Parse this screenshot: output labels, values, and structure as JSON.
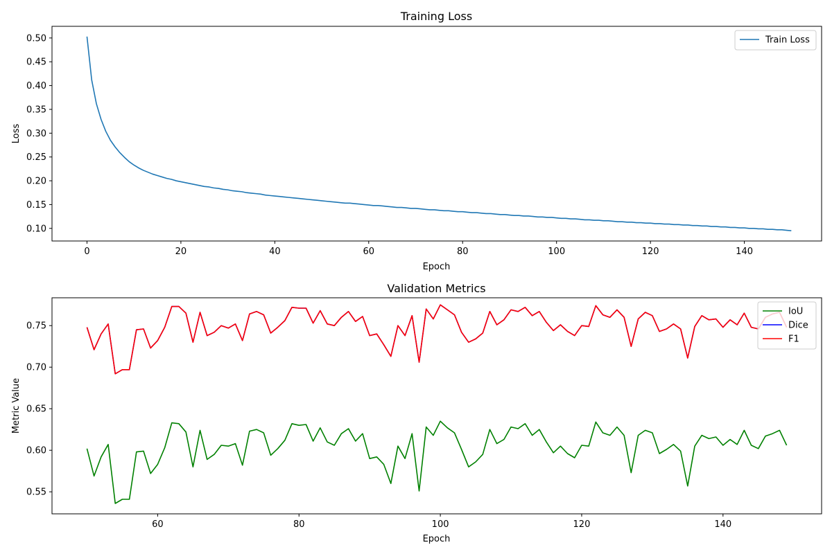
{
  "chart_data": [
    {
      "type": "line",
      "title": "Training Loss",
      "xlabel": "Epoch",
      "ylabel": "Loss",
      "xlim": [
        -7.45,
        156.45
      ],
      "ylim": [
        0.0735,
        0.5245
      ],
      "xticks": [
        0,
        20,
        40,
        60,
        80,
        100,
        120,
        140
      ],
      "yticks": [
        0.1,
        0.15,
        0.2,
        0.25,
        0.3,
        0.35,
        0.4,
        0.45,
        0.5
      ],
      "grid": false,
      "legend": "top-right",
      "colors": {
        "Train Loss": "#1f77b4"
      },
      "x_start": 0,
      "series": [
        {
          "name": "Train Loss",
          "values": [
            0.503,
            0.412,
            0.362,
            0.329,
            0.304,
            0.285,
            0.271,
            0.259,
            0.249,
            0.24,
            0.233,
            0.227,
            0.222,
            0.218,
            0.214,
            0.211,
            0.208,
            0.205,
            0.203,
            0.2,
            0.198,
            0.196,
            0.194,
            0.192,
            0.19,
            0.188,
            0.187,
            0.185,
            0.184,
            0.182,
            0.181,
            0.179,
            0.178,
            0.177,
            0.175,
            0.174,
            0.173,
            0.172,
            0.17,
            0.169,
            0.168,
            0.167,
            0.166,
            0.165,
            0.164,
            0.163,
            0.162,
            0.161,
            0.16,
            0.159,
            0.158,
            0.157,
            0.156,
            0.155,
            0.154,
            0.153,
            0.153,
            0.152,
            0.151,
            0.15,
            0.149,
            0.148,
            0.148,
            0.147,
            0.146,
            0.145,
            0.144,
            0.144,
            0.143,
            0.142,
            0.142,
            0.141,
            0.14,
            0.139,
            0.139,
            0.138,
            0.137,
            0.137,
            0.136,
            0.135,
            0.135,
            0.134,
            0.133,
            0.133,
            0.132,
            0.131,
            0.131,
            0.13,
            0.129,
            0.129,
            0.128,
            0.127,
            0.127,
            0.126,
            0.126,
            0.125,
            0.124,
            0.124,
            0.123,
            0.123,
            0.122,
            0.121,
            0.121,
            0.12,
            0.12,
            0.119,
            0.118,
            0.118,
            0.117,
            0.117,
            0.116,
            0.116,
            0.115,
            0.114,
            0.114,
            0.113,
            0.113,
            0.112,
            0.112,
            0.111,
            0.111,
            0.11,
            0.11,
            0.109,
            0.109,
            0.108,
            0.108,
            0.107,
            0.107,
            0.106,
            0.106,
            0.105,
            0.105,
            0.104,
            0.104,
            0.103,
            0.103,
            0.102,
            0.102,
            0.101,
            0.101,
            0.1,
            0.1,
            0.099,
            0.099,
            0.098,
            0.098,
            0.097,
            0.097,
            0.096,
            0.095
          ]
        }
      ]
    },
    {
      "type": "line",
      "title": "Validation Metrics",
      "xlabel": "Epoch",
      "ylabel": "Metric Value",
      "xlim": [
        45.05,
        153.95
      ],
      "ylim": [
        0.5235,
        0.7835
      ],
      "xticks": [
        60,
        80,
        100,
        120,
        140
      ],
      "yticks": [
        0.55,
        0.6,
        0.65,
        0.7,
        0.75
      ],
      "grid": false,
      "legend": "top-right",
      "colors": {
        "IoU": "#008000",
        "Dice": "#0000ff",
        "F1": "#ff0000"
      },
      "x_start": 50,
      "series": [
        {
          "name": "IoU",
          "values": [
            0.602,
            0.569,
            0.592,
            0.607,
            0.536,
            0.541,
            0.541,
            0.598,
            0.599,
            0.572,
            0.583,
            0.603,
            0.633,
            0.632,
            0.622,
            0.58,
            0.624,
            0.589,
            0.595,
            0.606,
            0.605,
            0.608,
            0.582,
            0.623,
            0.625,
            0.621,
            0.594,
            0.602,
            0.612,
            0.632,
            0.63,
            0.631,
            0.611,
            0.627,
            0.61,
            0.606,
            0.62,
            0.626,
            0.611,
            0.62,
            0.59,
            0.592,
            0.583,
            0.56,
            0.605,
            0.59,
            0.62,
            0.551,
            0.628,
            0.618,
            0.635,
            0.627,
            0.621,
            0.601,
            0.58,
            0.586,
            0.595,
            0.625,
            0.608,
            0.613,
            0.628,
            0.626,
            0.632,
            0.618,
            0.625,
            0.61,
            0.597,
            0.605,
            0.596,
            0.591,
            0.606,
            0.605,
            0.634,
            0.621,
            0.618,
            0.628,
            0.618,
            0.573,
            0.618,
            0.624,
            0.621,
            0.596,
            0.601,
            0.607,
            0.599,
            0.557,
            0.605,
            0.618,
            0.614,
            0.616,
            0.606,
            0.613,
            0.607,
            0.624,
            0.606,
            0.602,
            0.617,
            0.62,
            0.624,
            0.606
          ]
        },
        {
          "name": "Dice",
          "values": [
            0.748,
            0.721,
            0.74,
            0.752,
            0.692,
            0.697,
            0.697,
            0.745,
            0.746,
            0.723,
            0.732,
            0.748,
            0.773,
            0.773,
            0.765,
            0.73,
            0.766,
            0.738,
            0.742,
            0.75,
            0.747,
            0.752,
            0.732,
            0.764,
            0.767,
            0.763,
            0.741,
            0.748,
            0.756,
            0.772,
            0.771,
            0.771,
            0.753,
            0.768,
            0.752,
            0.75,
            0.76,
            0.767,
            0.755,
            0.761,
            0.738,
            0.74,
            0.727,
            0.713,
            0.75,
            0.738,
            0.762,
            0.706,
            0.77,
            0.758,
            0.775,
            0.769,
            0.763,
            0.742,
            0.73,
            0.734,
            0.741,
            0.767,
            0.751,
            0.757,
            0.769,
            0.767,
            0.772,
            0.762,
            0.767,
            0.754,
            0.744,
            0.751,
            0.743,
            0.738,
            0.75,
            0.749,
            0.774,
            0.763,
            0.76,
            0.769,
            0.76,
            0.725,
            0.758,
            0.766,
            0.762,
            0.743,
            0.746,
            0.752,
            0.746,
            0.711,
            0.749,
            0.762,
            0.757,
            0.758,
            0.748,
            0.757,
            0.751,
            0.765,
            0.748,
            0.746,
            0.76,
            0.764,
            0.766,
            0.748
          ]
        },
        {
          "name": "F1",
          "values": [
            0.748,
            0.721,
            0.74,
            0.752,
            0.692,
            0.697,
            0.697,
            0.745,
            0.746,
            0.723,
            0.732,
            0.748,
            0.773,
            0.773,
            0.765,
            0.73,
            0.766,
            0.738,
            0.742,
            0.75,
            0.747,
            0.752,
            0.732,
            0.764,
            0.767,
            0.763,
            0.741,
            0.748,
            0.756,
            0.772,
            0.771,
            0.771,
            0.753,
            0.768,
            0.752,
            0.75,
            0.76,
            0.767,
            0.755,
            0.761,
            0.738,
            0.74,
            0.727,
            0.713,
            0.75,
            0.738,
            0.762,
            0.706,
            0.77,
            0.758,
            0.775,
            0.769,
            0.763,
            0.742,
            0.73,
            0.734,
            0.741,
            0.767,
            0.751,
            0.757,
            0.769,
            0.767,
            0.772,
            0.762,
            0.767,
            0.754,
            0.744,
            0.751,
            0.743,
            0.738,
            0.75,
            0.749,
            0.774,
            0.763,
            0.76,
            0.769,
            0.76,
            0.725,
            0.758,
            0.766,
            0.762,
            0.743,
            0.746,
            0.752,
            0.746,
            0.711,
            0.749,
            0.762,
            0.757,
            0.758,
            0.748,
            0.757,
            0.751,
            0.765,
            0.748,
            0.746,
            0.76,
            0.764,
            0.766,
            0.748
          ]
        }
      ]
    }
  ]
}
